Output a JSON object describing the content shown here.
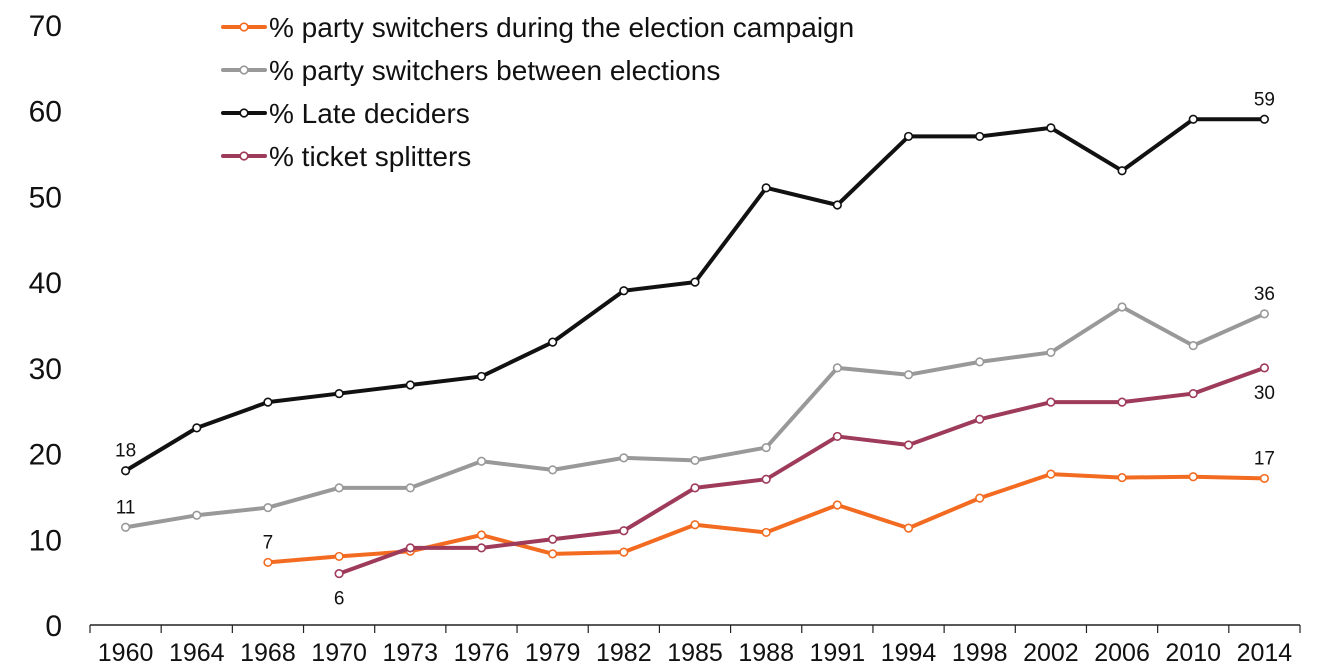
{
  "chart_data": {
    "type": "line",
    "title": "",
    "xlabel": "",
    "ylabel": "",
    "ylim": [
      0,
      70
    ],
    "yticks": [
      0,
      10,
      20,
      30,
      40,
      50,
      60,
      70
    ],
    "grid": false,
    "legend_position": "top-center",
    "categories": [
      "1960",
      "1964",
      "1968",
      "1970",
      "1973",
      "1976",
      "1979",
      "1982",
      "1985",
      "1988",
      "1991",
      "1994",
      "1998",
      "2002",
      "2006",
      "2010",
      "2014"
    ],
    "series": [
      {
        "name": "% party switchers during the election campaign",
        "color": "#f26b21",
        "values": [
          null,
          null,
          7.3,
          8.0,
          8.6,
          10.5,
          8.3,
          8.5,
          11.7,
          10.8,
          14.0,
          11.3,
          14.8,
          17.6,
          17.2,
          17.3,
          17.1
        ],
        "labels": [
          {
            "index": 2,
            "text": "7",
            "position": "above"
          },
          {
            "index": 16,
            "text": "17",
            "position": "above"
          }
        ]
      },
      {
        "name": "% party switchers between elections",
        "color": "#999999",
        "values": [
          11.4,
          12.8,
          13.7,
          16.0,
          16.0,
          19.1,
          18.1,
          19.5,
          19.2,
          20.7,
          30.0,
          29.2,
          30.7,
          31.8,
          37.1,
          32.6,
          36.3
        ],
        "labels": [
          {
            "index": 0,
            "text": "11",
            "position": "above"
          },
          {
            "index": 16,
            "text": "36",
            "position": "above"
          }
        ]
      },
      {
        "name": "% Late deciders",
        "color": "#111111",
        "values": [
          18,
          23,
          26,
          27,
          28,
          29,
          33,
          39,
          40,
          51,
          49,
          57,
          57,
          58,
          53,
          59,
          59
        ],
        "labels": [
          {
            "index": 0,
            "text": "18",
            "position": "above"
          },
          {
            "index": 16,
            "text": "59",
            "position": "above"
          }
        ]
      },
      {
        "name": "% ticket splitters",
        "color": "#9e3a5a",
        "values": [
          null,
          null,
          null,
          6,
          9,
          9,
          10,
          11,
          16,
          17,
          22,
          21,
          24,
          26,
          26,
          27,
          30
        ],
        "labels": [
          {
            "index": 3,
            "text": "6",
            "position": "below"
          },
          {
            "index": 16,
            "text": "30",
            "position": "below"
          }
        ]
      }
    ]
  }
}
